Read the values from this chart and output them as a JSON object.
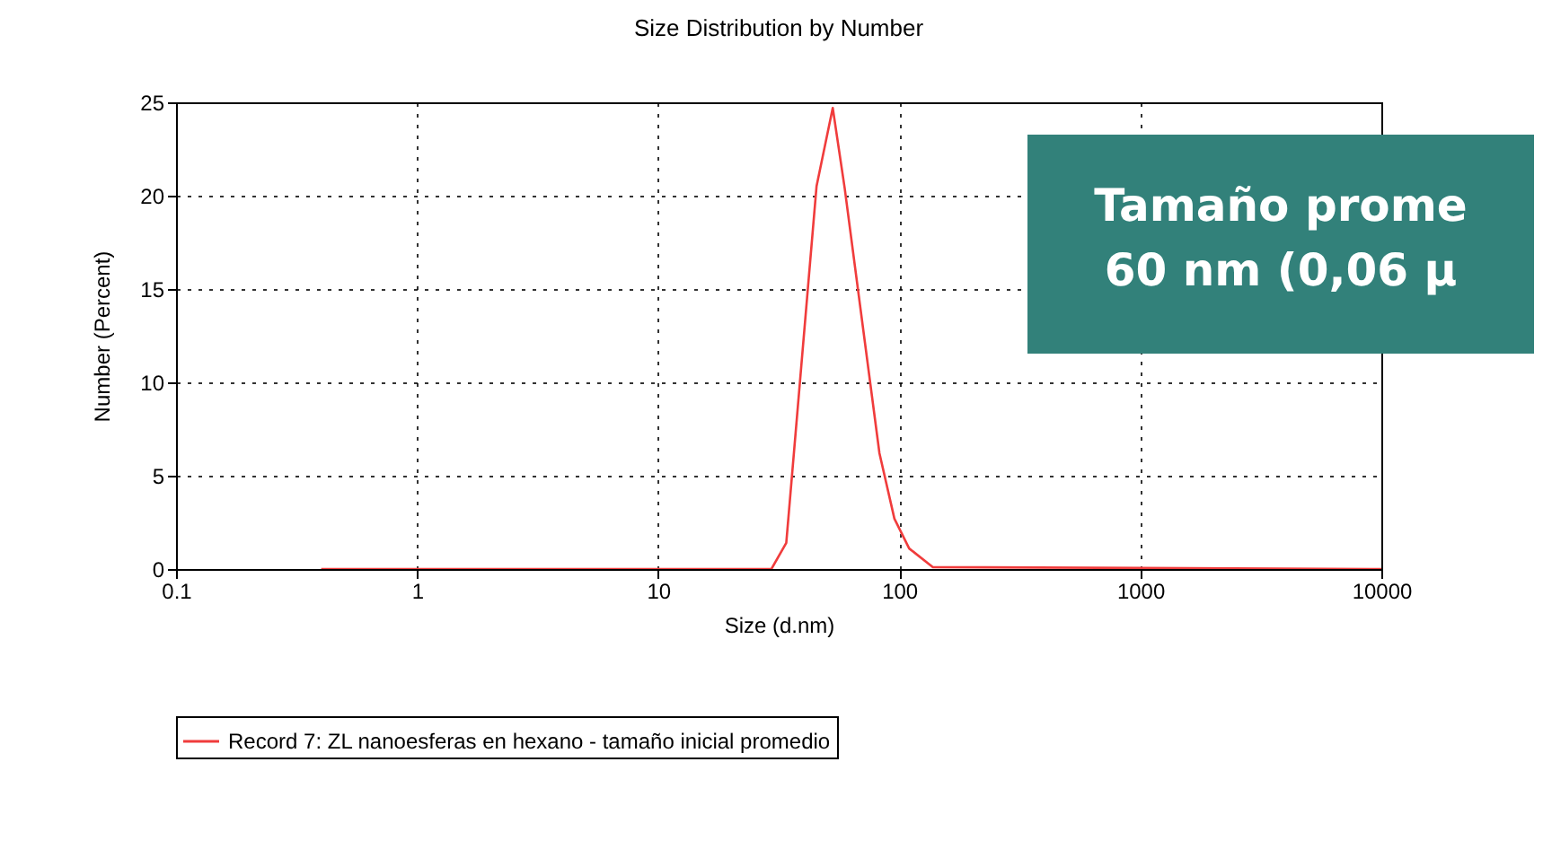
{
  "chart_data": {
    "type": "line",
    "title": "Size Distribution by Number",
    "xlabel": "Size (d.nm)",
    "ylabel": "Number (Percent)",
    "log": "x",
    "xlim": [
      0.1,
      10000
    ],
    "xticks": [
      0.1,
      1,
      10,
      100,
      1000,
      10000
    ],
    "ylim": [
      0,
      25
    ],
    "yticks": [
      0,
      5,
      10,
      15,
      20,
      25
    ],
    "grid": true,
    "legend": "bottom",
    "annotations": [
      "Tamaño prome",
      "60 nm (0,06 µ"
    ],
    "series": [
      {
        "name": "Record 7: ZL nanoesferas en hexano - tamaño inicial promedio",
        "color": "#f03c3c",
        "x": [
          0.4,
          29.5,
          34,
          45.4,
          53,
          59.4,
          82.8,
          95.5,
          110,
          138,
          10000
        ],
        "values": [
          0,
          0,
          1.4,
          20.5,
          24.7,
          20.4,
          6.2,
          2.7,
          1.1,
          0.1,
          0
        ]
      }
    ]
  }
}
